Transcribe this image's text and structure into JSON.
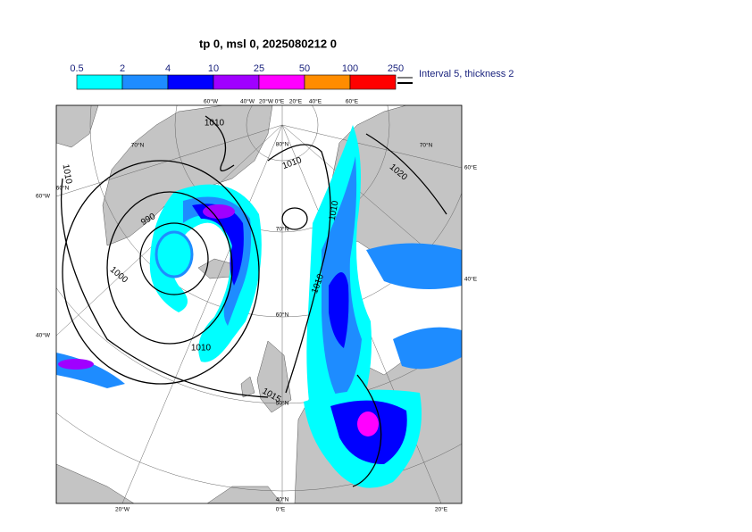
{
  "header": {
    "title": "tp 0, msl 0, 2025080212 0"
  },
  "legend": {
    "labels": [
      "0.5",
      "2",
      "4",
      "10",
      "25",
      "50",
      "100",
      "250"
    ],
    "colors": [
      "#00ffff",
      "#1e8cff",
      "#0000ff",
      "#a000ff",
      "#ff00ff",
      "#ff8c00",
      "#ff0000"
    ],
    "note": "Interval 5, thickness 2"
  },
  "map": {
    "edge_labels": [
      "60°W",
      "40°W",
      "20°W",
      "0°E",
      "20°E",
      "60°E",
      "40°E",
      "60°W",
      "40°W",
      "20°W",
      "0°E",
      "20°E",
      "40°E",
      "60°E"
    ],
    "grid_labels": [
      "80°N",
      "70°N",
      "60°N",
      "50°N",
      "40°N",
      "70°N",
      "70°N",
      "60°N"
    ],
    "contour_labels": [
      "1010",
      "1010",
      "1010",
      "990",
      "1000",
      "1010",
      "1020",
      "1010",
      "1010",
      "1015"
    ]
  }
}
